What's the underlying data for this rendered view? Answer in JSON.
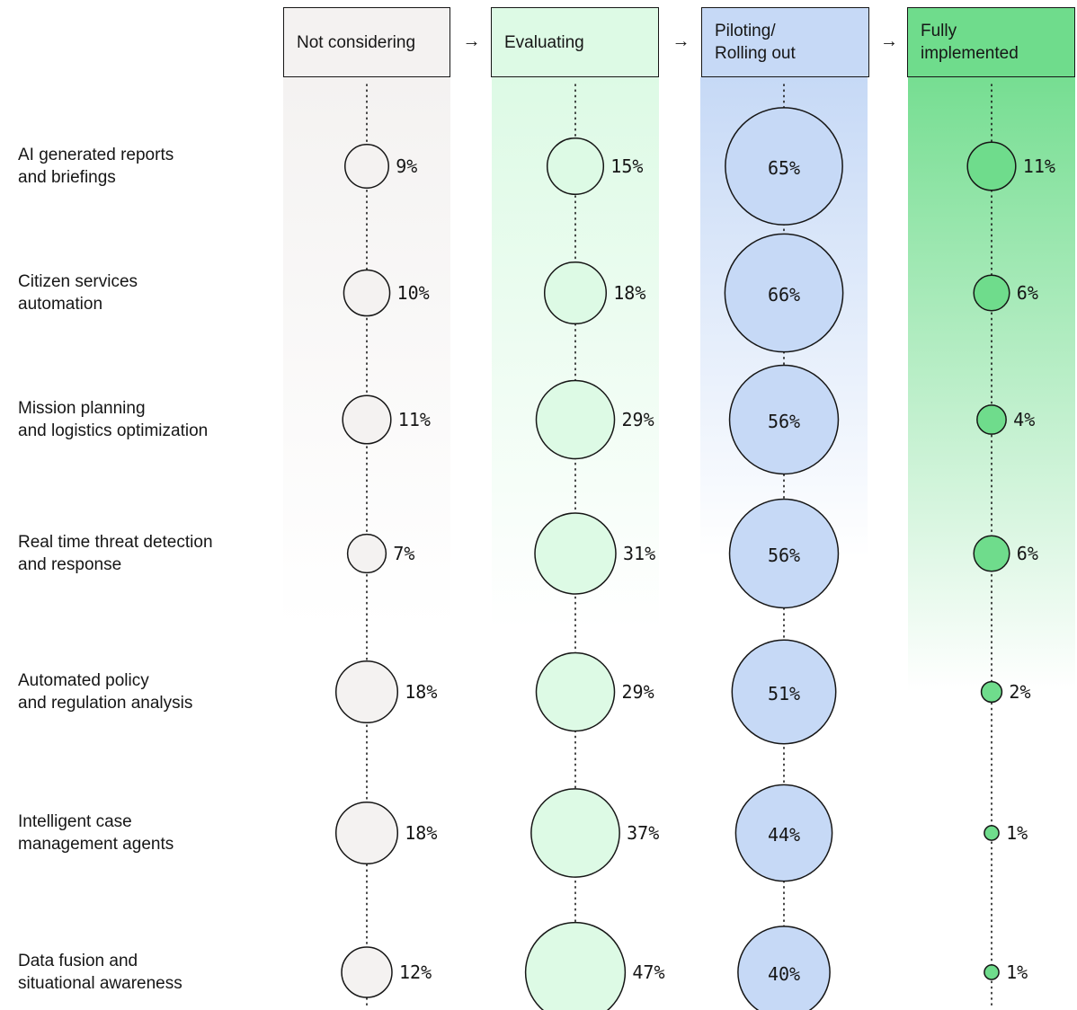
{
  "stages": [
    {
      "label": "Not considering",
      "fill": "#f4f2f1",
      "bubble": "#f4f2f1",
      "dot": "#f4f2f1"
    },
    {
      "label": "Evaluating",
      "fill": "#ddfae5",
      "bubble": "#ddfae5",
      "dot": "#ddfae5"
    },
    {
      "label": "Piloting/\nRolling out",
      "fill": "#c6d9f6",
      "bubble": "#c6d9f6",
      "dot": "#c6d9f6"
    },
    {
      "label": "Fully\nimplemented",
      "fill": "#6fdc8c",
      "bubble": "#6fdc8c",
      "dot": "#6fdc8c"
    }
  ],
  "arrow_glyph": "→",
  "rows": [
    {
      "label": "AI generated reports\nand briefings",
      "values": [
        9,
        15,
        65,
        11
      ]
    },
    {
      "label": "Citizen services\nautomation",
      "values": [
        10,
        18,
        66,
        6
      ]
    },
    {
      "label": "Mission planning\nand  logistics optimization",
      "values": [
        11,
        29,
        56,
        4
      ]
    },
    {
      "label": "Real time threat detection\nand  response",
      "values": [
        7,
        31,
        56,
        6
      ]
    },
    {
      "label": "Automated policy\nand  regulation analysis",
      "values": [
        18,
        29,
        51,
        2
      ]
    },
    {
      "label": "Intelligent case\nmanagement agents",
      "values": [
        18,
        37,
        44,
        1
      ]
    },
    {
      "label": "Data fusion and\nsituational awareness",
      "values": [
        12,
        47,
        40,
        1
      ]
    }
  ],
  "chart_data": {
    "type": "bubble-matrix",
    "unit": "%",
    "categories": [
      "Not considering",
      "Evaluating",
      "Piloting/Rolling out",
      "Fully implemented"
    ],
    "rows": [
      "AI generated reports and briefings",
      "Citizen services automation",
      "Mission planning and  logistics optimization",
      "Real time threat detection and  response",
      "Automated policy and  regulation analysis",
      "Intelligent case management agents",
      "Data fusion and situational awareness"
    ],
    "series": [
      {
        "name": "Not considering",
        "values": [
          9,
          10,
          11,
          7,
          18,
          18,
          12
        ]
      },
      {
        "name": "Evaluating",
        "values": [
          15,
          18,
          29,
          31,
          29,
          37,
          47
        ]
      },
      {
        "name": "Piloting/Rolling out",
        "values": [
          65,
          66,
          56,
          56,
          51,
          44,
          40
        ]
      },
      {
        "name": "Fully implemented",
        "values": [
          11,
          6,
          4,
          6,
          2,
          1,
          1
        ]
      }
    ]
  }
}
